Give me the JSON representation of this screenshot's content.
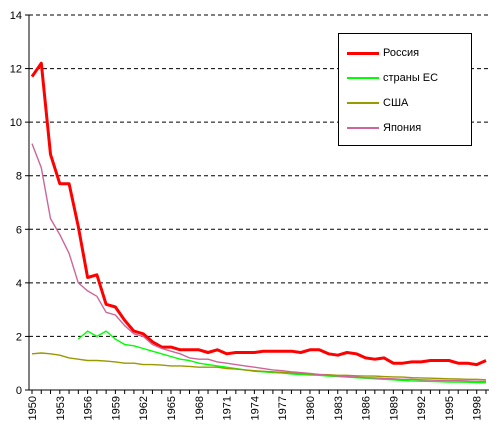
{
  "chart_data": {
    "type": "line",
    "title": "",
    "xlabel": "",
    "ylabel": "",
    "ylim": [
      0,
      14
    ],
    "y_ticks": [
      0,
      2,
      4,
      6,
      8,
      10,
      12,
      14
    ],
    "x_tick_labels": [
      "1950",
      "1953",
      "1956",
      "1959",
      "1962",
      "1965",
      "1968",
      "1971",
      "1974",
      "1977",
      "1980",
      "1983",
      "1986",
      "1989",
      "1992",
      "1995",
      "1998"
    ],
    "grid": "horizontal dashed",
    "legend_position": "top-right",
    "x": [
      1950,
      1951,
      1952,
      1953,
      1954,
      1955,
      1956,
      1957,
      1958,
      1959,
      1960,
      1961,
      1962,
      1963,
      1964,
      1965,
      1966,
      1967,
      1968,
      1969,
      1970,
      1971,
      1972,
      1973,
      1974,
      1975,
      1976,
      1977,
      1978,
      1979,
      1980,
      1981,
      1982,
      1983,
      1984,
      1985,
      1986,
      1987,
      1988,
      1989,
      1990,
      1991,
      1992,
      1993,
      1994,
      1995,
      1996,
      1997,
      1998,
      1999
    ],
    "series": [
      {
        "name": "Россия",
        "color": "#ff0000",
        "width": 3,
        "values": [
          11.7,
          12.2,
          8.8,
          7.7,
          7.7,
          6.1,
          4.2,
          4.3,
          3.2,
          3.1,
          2.6,
          2.2,
          2.1,
          1.8,
          1.6,
          1.6,
          1.5,
          1.5,
          1.5,
          1.4,
          1.5,
          1.35,
          1.4,
          1.4,
          1.4,
          1.45,
          1.45,
          1.45,
          1.45,
          1.4,
          1.5,
          1.5,
          1.35,
          1.3,
          1.4,
          1.35,
          1.2,
          1.15,
          1.2,
          1.0,
          1.0,
          1.05,
          1.05,
          1.1,
          1.1,
          1.1,
          1.0,
          1.0,
          0.95,
          1.1
        ]
      },
      {
        "name": "страны ЕС",
        "color": "#00ff00",
        "width": 1.4,
        "values": [
          null,
          null,
          null,
          null,
          null,
          1.9,
          2.2,
          2.0,
          2.2,
          1.9,
          1.7,
          1.65,
          1.55,
          1.45,
          1.35,
          1.25,
          1.15,
          1.1,
          1.0,
          0.95,
          0.9,
          0.85,
          0.8,
          0.75,
          0.7,
          0.68,
          0.65,
          0.63,
          0.6,
          0.58,
          0.56,
          0.55,
          0.52,
          0.5,
          0.48,
          0.46,
          0.44,
          0.42,
          0.4,
          0.38,
          0.36,
          0.34,
          0.33,
          0.32,
          0.31,
          0.3,
          0.3,
          0.29,
          0.28,
          0.27
        ]
      },
      {
        "name": "США",
        "color": "#999900",
        "width": 1.4,
        "values": [
          1.35,
          1.38,
          1.35,
          1.3,
          1.2,
          1.15,
          1.1,
          1.1,
          1.08,
          1.05,
          1.0,
          1.0,
          0.95,
          0.95,
          0.93,
          0.9,
          0.9,
          0.88,
          0.85,
          0.85,
          0.85,
          0.8,
          0.78,
          0.75,
          0.72,
          0.7,
          0.68,
          0.66,
          0.64,
          0.62,
          0.6,
          0.58,
          0.57,
          0.55,
          0.55,
          0.53,
          0.52,
          0.52,
          0.5,
          0.49,
          0.48,
          0.46,
          0.45,
          0.44,
          0.43,
          0.42,
          0.41,
          0.4,
          0.4,
          0.38
        ]
      },
      {
        "name": "Япония",
        "color": "#cc6699",
        "width": 1.4,
        "values": [
          9.2,
          8.3,
          6.4,
          5.8,
          5.1,
          4.0,
          3.7,
          3.5,
          2.9,
          2.8,
          2.4,
          2.1,
          2.0,
          1.7,
          1.55,
          1.45,
          1.35,
          1.2,
          1.15,
          1.15,
          1.05,
          1.0,
          0.95,
          0.9,
          0.85,
          0.8,
          0.75,
          0.72,
          0.68,
          0.65,
          0.62,
          0.58,
          0.55,
          0.52,
          0.5,
          0.48,
          0.46,
          0.45,
          0.43,
          0.42,
          0.4,
          0.4,
          0.38,
          0.37,
          0.36,
          0.35,
          0.35,
          0.34,
          0.33,
          0.32
        ]
      }
    ]
  }
}
